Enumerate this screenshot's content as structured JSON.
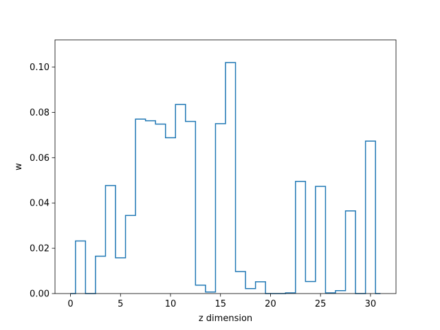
{
  "chart_data": {
    "type": "step",
    "xlabel": "z dimension",
    "ylabel": "w",
    "xlim": [
      -1.55,
      32.55
    ],
    "ylim": [
      0,
      0.112
    ],
    "xticks": [
      0,
      5,
      10,
      15,
      20,
      25,
      30
    ],
    "yticks": [
      0.0,
      0.02,
      0.04,
      0.06,
      0.08,
      0.1
    ],
    "xtick_labels": [
      "0",
      "5",
      "10",
      "15",
      "20",
      "25",
      "30"
    ],
    "ytick_labels": [
      "0.00",
      "0.02",
      "0.04",
      "0.06",
      "0.08",
      "0.10"
    ],
    "grid": false,
    "line_color": "#1f77b4",
    "x": [
      0,
      1,
      2,
      3,
      4,
      5,
      6,
      7,
      8,
      9,
      10,
      11,
      12,
      13,
      14,
      15,
      16,
      17,
      18,
      19,
      20,
      21,
      22,
      23,
      24,
      25,
      26,
      27,
      28,
      29,
      30,
      31
    ],
    "values": [
      0.0,
      0.0232,
      0.0,
      0.0165,
      0.0477,
      0.0158,
      0.0345,
      0.077,
      0.0763,
      0.0748,
      0.0688,
      0.0835,
      0.076,
      0.0037,
      0.0007,
      0.075,
      0.102,
      0.0097,
      0.0022,
      0.0052,
      0.0,
      0.0,
      0.0003,
      0.0495,
      0.0053,
      0.0473,
      0.0003,
      0.0013,
      0.0365,
      0.0,
      0.0673,
      0.0
    ]
  }
}
